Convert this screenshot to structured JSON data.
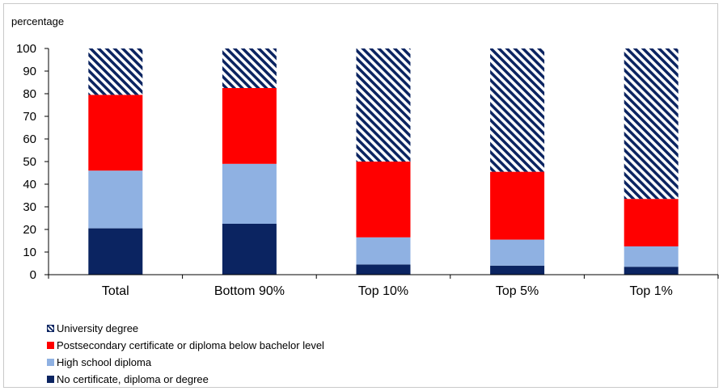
{
  "chart_data": {
    "type": "bar",
    "stacked": true,
    "ylabel": "percentage",
    "xlabel": "",
    "ylim": [
      0,
      100
    ],
    "yticks": [
      0,
      10,
      20,
      30,
      40,
      50,
      60,
      70,
      80,
      90,
      100
    ],
    "categories": [
      "Total",
      "Bottom 90%",
      "Top 10%",
      "Top 5%",
      "Top 1%"
    ],
    "series": [
      {
        "name": "No certificate, diploma or degree",
        "color": "#0b2461",
        "pattern": "solid",
        "values": [
          20.5,
          22.5,
          4.5,
          4.0,
          3.5
        ]
      },
      {
        "name": "High school diploma",
        "color": "#8fb1e2",
        "pattern": "solid",
        "values": [
          25.5,
          26.5,
          12.0,
          11.5,
          9.0
        ]
      },
      {
        "name": "Postsecondary certificate or diploma below bachelor level",
        "color": "#ff0000",
        "pattern": "solid",
        "values": [
          33.5,
          33.5,
          33.5,
          30.0,
          21.0
        ]
      },
      {
        "name": "University degree",
        "color": "#0b2461",
        "pattern": "diagonal-stripes",
        "values": [
          20.5,
          17.5,
          50.0,
          54.5,
          66.5
        ]
      }
    ],
    "legend_order": [
      3,
      2,
      1,
      0
    ],
    "legend_position": "bottom-left",
    "grid": false
  }
}
